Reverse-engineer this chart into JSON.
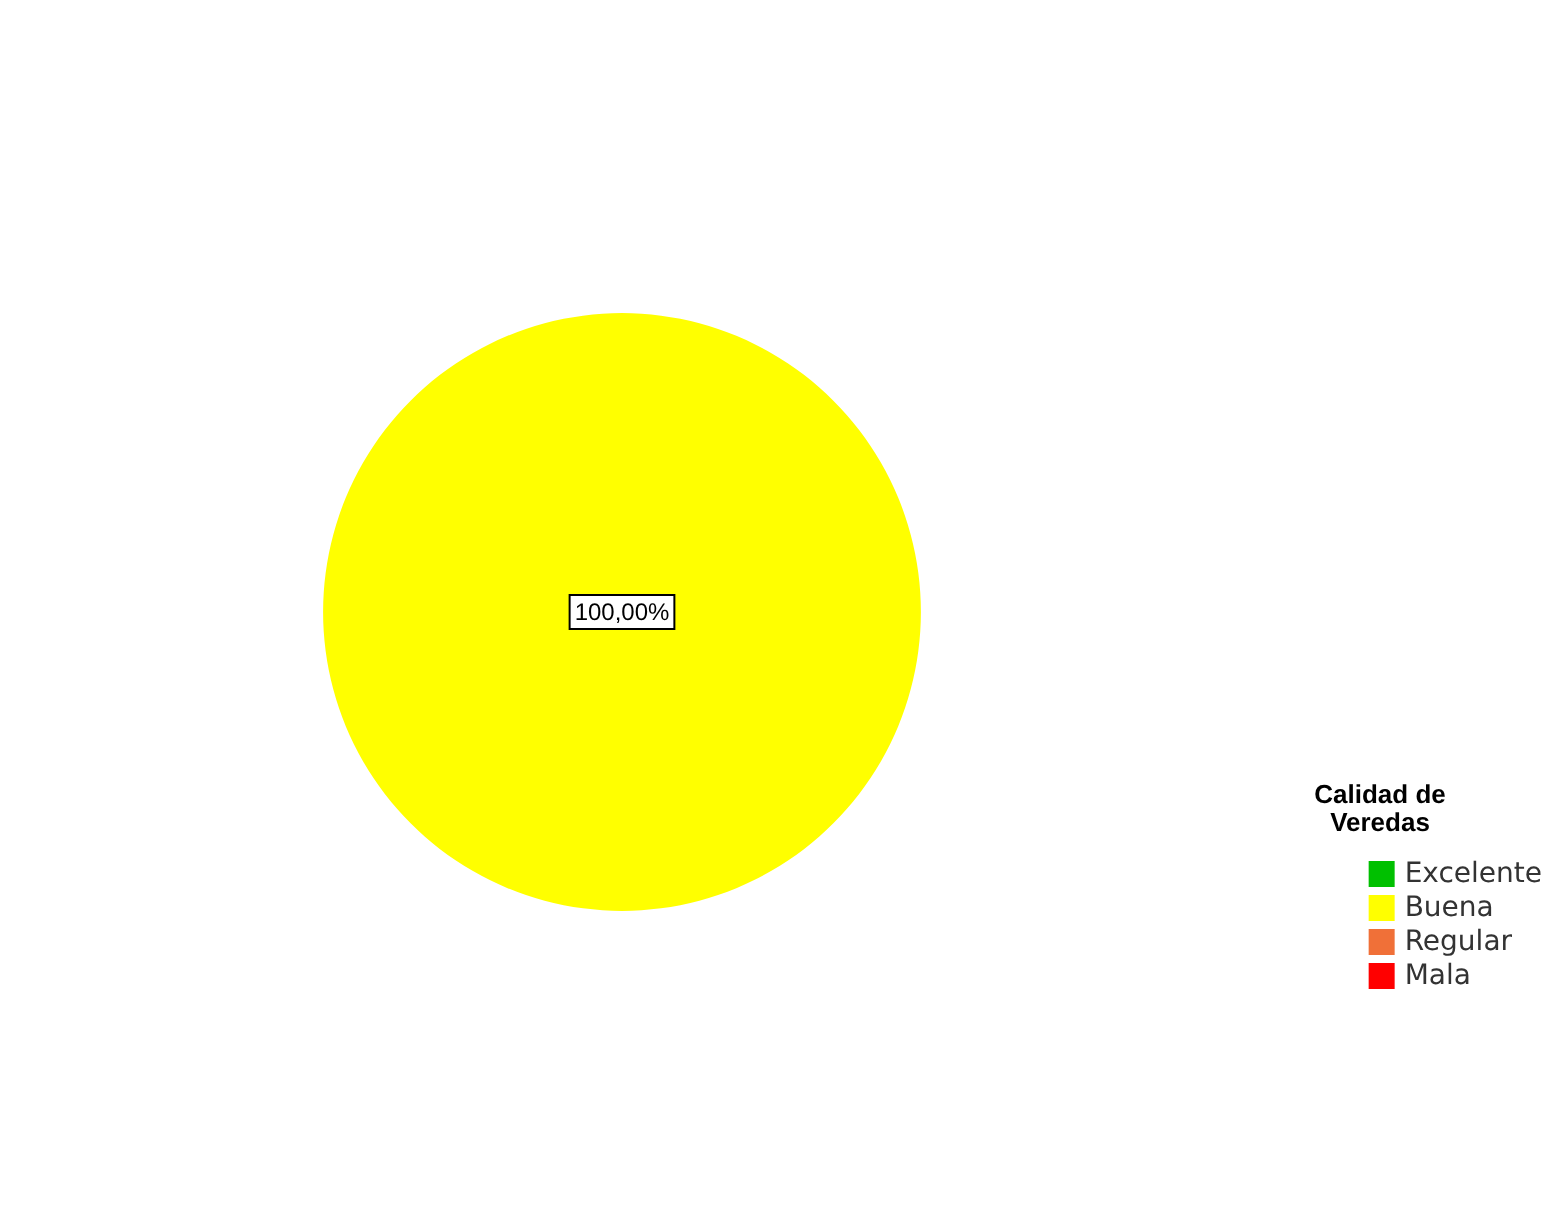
{
  "chart_data": {
    "type": "pie",
    "categories": [
      "Excelente",
      "Buena",
      "Regular",
      "Mala"
    ],
    "values": [
      0,
      100,
      0,
      0
    ],
    "colors": [
      "#00c000",
      "#ffff00",
      "#f07038",
      "#ff0000"
    ],
    "value_labels": [
      null,
      "100,00%",
      null,
      null
    ],
    "legend_title": "Calidad de\nVeredas",
    "legend": "right"
  }
}
